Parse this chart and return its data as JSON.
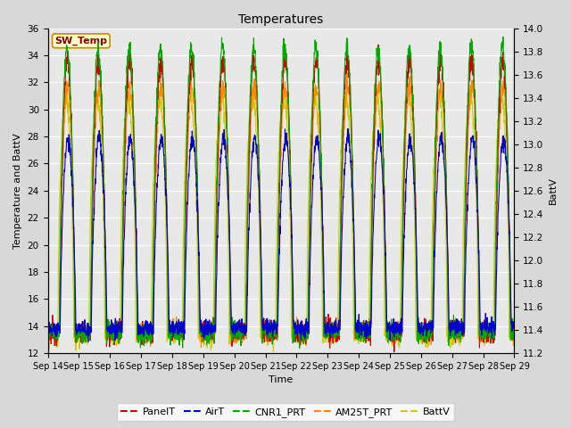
{
  "title": "Temperatures",
  "xlabel": "Time",
  "ylabel_left": "Temperature and BattV",
  "ylabel_right": "BattV",
  "annotation": "SW_Temp",
  "x_tick_labels": [
    "Sep 14",
    "Sep 15",
    "Sep 16",
    "Sep 17",
    "Sep 18",
    "Sep 19",
    "Sep 20",
    "Sep 21",
    "Sep 22",
    "Sep 23",
    "Sep 24",
    "Sep 25",
    "Sep 26",
    "Sep 27",
    "Sep 28",
    "Sep 29"
  ],
  "ylim_left": [
    12,
    36
  ],
  "ylim_right": [
    11.2,
    14.0
  ],
  "yticks_left": [
    12,
    14,
    16,
    18,
    20,
    22,
    24,
    26,
    28,
    30,
    32,
    34,
    36
  ],
  "yticks_right": [
    11.2,
    11.4,
    11.6,
    11.8,
    12.0,
    12.2,
    12.4,
    12.6,
    12.8,
    13.0,
    13.2,
    13.4,
    13.6,
    13.8,
    14.0
  ],
  "series_colors": {
    "PanelT": "#cc0000",
    "AirT": "#0000cc",
    "CNR1_PRT": "#00aa00",
    "AM25T_PRT": "#ff8800",
    "BattV": "#cccc00"
  },
  "legend_labels": [
    "PanelT",
    "AirT",
    "CNR1_PRT",
    "AM25T_PRT",
    "BattV"
  ],
  "background_color": "#d8d8d8",
  "plot_bg_color": "#e8e8e8",
  "grid_color": "#ffffff",
  "n_days": 15,
  "pts_per_day": 144
}
